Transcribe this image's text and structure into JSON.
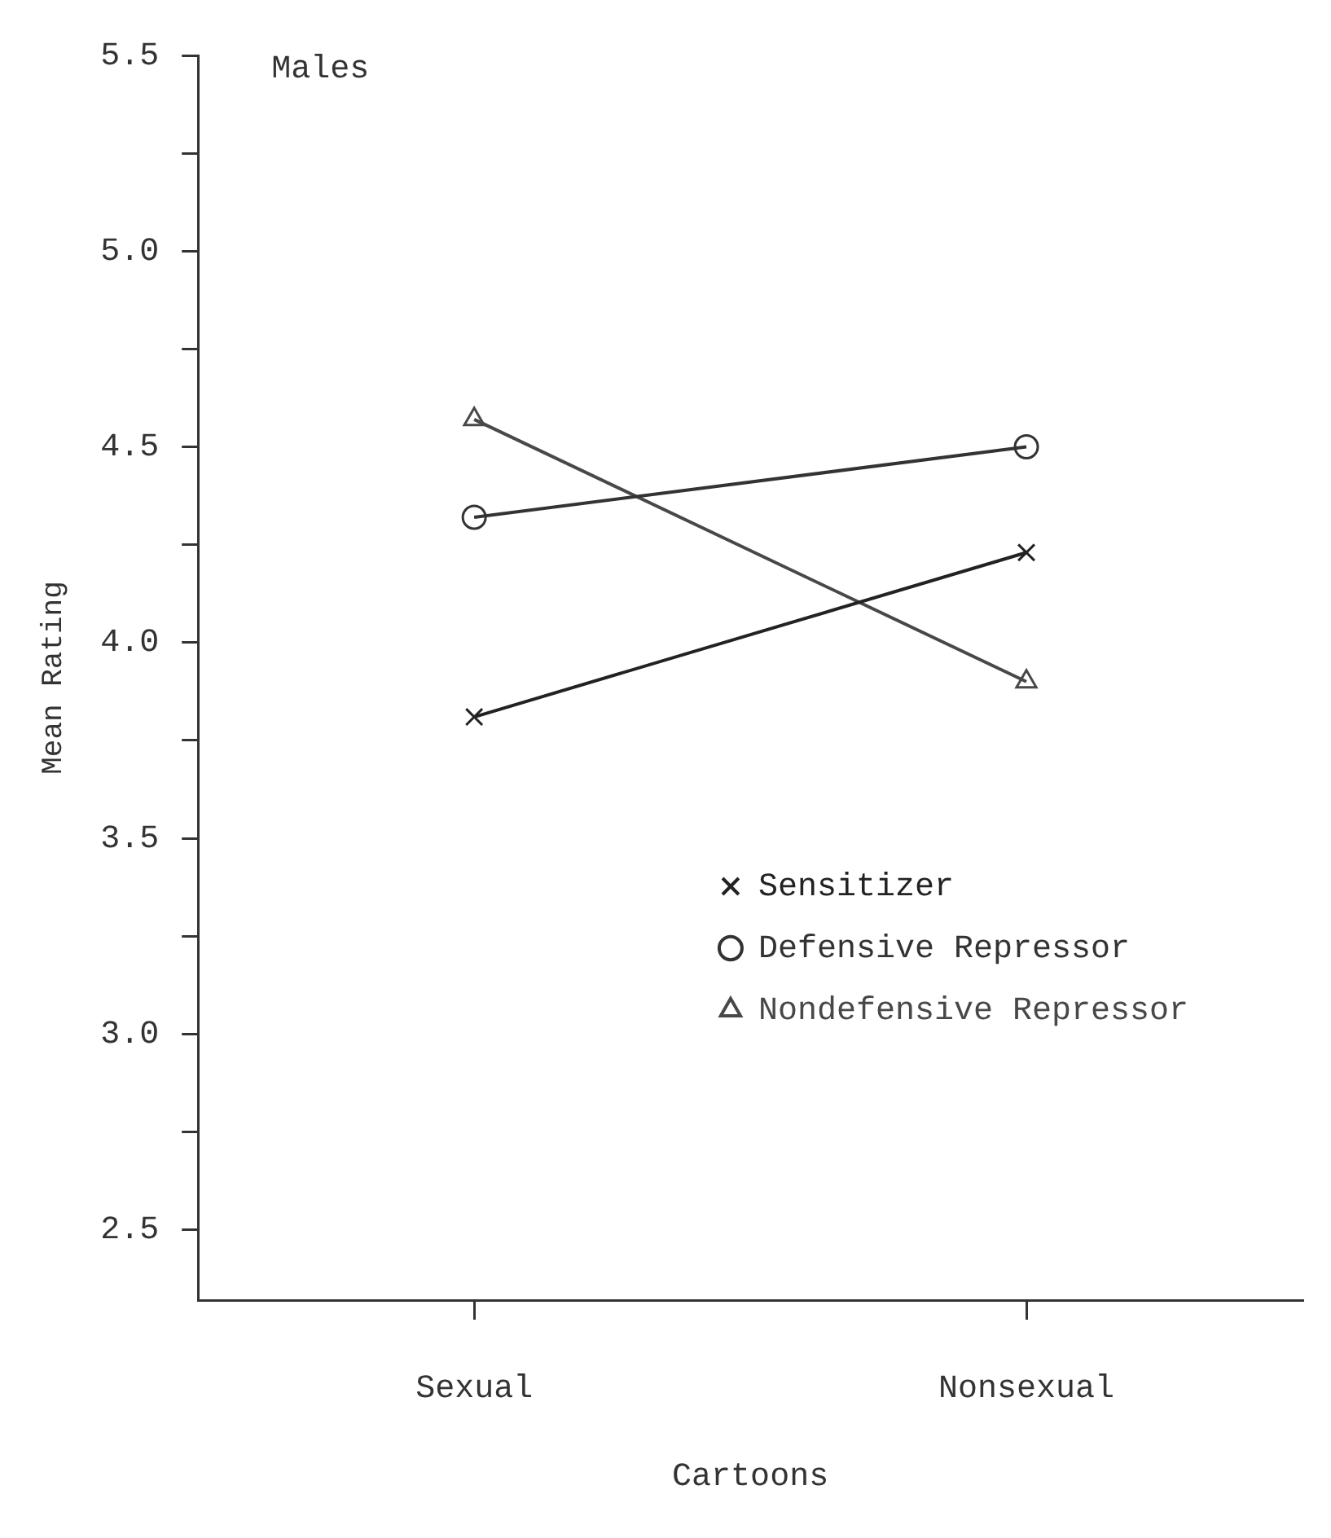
{
  "chart_data": {
    "type": "line",
    "annotations": [
      "Males"
    ],
    "xlabel": "Cartoons",
    "ylabel": "Mean Rating",
    "categories": [
      "Sexual",
      "Nonsexual"
    ],
    "series": [
      {
        "name": "Sensitizer",
        "color": "#222222",
        "marker": "cross",
        "values": [
          3.81,
          4.23
        ]
      },
      {
        "name": "Defensive Repressor",
        "color": "#333333",
        "marker": "circle",
        "values": [
          4.32,
          4.5
        ]
      },
      {
        "name": "Nondefensive Repressor",
        "color": "#484848",
        "marker": "triangle",
        "values": [
          4.57,
          3.9
        ]
      }
    ],
    "ylim": [
      2.32,
      5.5
    ],
    "yticks": [
      2.5,
      {
        "value": 2.75,
        "label": null
      },
      {
        "value": 3,
        "label": "3.0"
      },
      {
        "value": 3.25,
        "label": null
      },
      3.5,
      {
        "value": 3.75,
        "label": null
      },
      {
        "value": 4,
        "label": "4.0"
      },
      {
        "value": 4.25,
        "label": null
      },
      4.5,
      {
        "value": 4.75,
        "label": null
      },
      {
        "value": 5,
        "label": "5.0"
      },
      {
        "value": 5.25,
        "label": null
      },
      5.5
    ],
    "grid": false,
    "legend": "bottom right",
    "line_style": "solid"
  }
}
